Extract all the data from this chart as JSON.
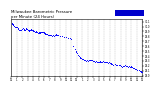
{
  "title": "Milwaukee Barometric Pressure\nper Minute (24 Hours)",
  "title_fontsize": 2.8,
  "bg_color": "#ffffff",
  "dot_color": "#0000ff",
  "dot_size": 0.5,
  "legend_color": "#0000cc",
  "ylim": [
    29.0,
    30.15
  ],
  "xlim": [
    0,
    1440
  ],
  "ytick_labels": [
    "30.1",
    "30.0",
    "29.9",
    "29.8",
    "29.7",
    "29.6",
    "29.5",
    "29.4",
    "29.3",
    "29.2",
    "29.1",
    "29.0"
  ],
  "ytick_values": [
    30.1,
    30.0,
    29.9,
    29.8,
    29.7,
    29.6,
    29.5,
    29.4,
    29.3,
    29.2,
    29.1,
    29.0
  ],
  "xtick_values": [
    0,
    60,
    120,
    180,
    240,
    300,
    360,
    420,
    480,
    540,
    600,
    660,
    720,
    780,
    840,
    900,
    960,
    1020,
    1080,
    1140,
    1200,
    1260,
    1320,
    1380,
    1440
  ],
  "xtick_labels": [
    "12",
    "1",
    "2",
    "3",
    "4",
    "5",
    "6",
    "7",
    "8",
    "9",
    "10",
    "11",
    "12",
    "1",
    "2",
    "3",
    "4",
    "5",
    "6",
    "7",
    "8",
    "9",
    "10",
    "11",
    "12"
  ],
  "data": [
    [
      5,
      30.08
    ],
    [
      10,
      30.06
    ],
    [
      15,
      30.05
    ],
    [
      20,
      30.04
    ],
    [
      25,
      30.03
    ],
    [
      30,
      30.02
    ],
    [
      35,
      30.01
    ],
    [
      40,
      30.0
    ],
    [
      50,
      29.99
    ],
    [
      60,
      29.98
    ],
    [
      70,
      29.96
    ],
    [
      80,
      29.95
    ],
    [
      90,
      29.93
    ],
    [
      100,
      29.92
    ],
    [
      110,
      29.93
    ],
    [
      120,
      29.95
    ],
    [
      130,
      29.96
    ],
    [
      135,
      29.94
    ],
    [
      140,
      29.95
    ],
    [
      145,
      29.93
    ],
    [
      150,
      29.92
    ],
    [
      155,
      29.93
    ],
    [
      160,
      29.95
    ],
    [
      165,
      29.96
    ],
    [
      170,
      29.95
    ],
    [
      175,
      29.94
    ],
    [
      180,
      29.93
    ],
    [
      190,
      29.92
    ],
    [
      195,
      29.91
    ],
    [
      200,
      29.9
    ],
    [
      210,
      29.92
    ],
    [
      215,
      29.93
    ],
    [
      220,
      29.94
    ],
    [
      230,
      29.93
    ],
    [
      235,
      29.92
    ],
    [
      240,
      29.91
    ],
    [
      250,
      29.9
    ],
    [
      260,
      29.88
    ],
    [
      270,
      29.9
    ],
    [
      275,
      29.89
    ],
    [
      280,
      29.88
    ],
    [
      290,
      29.87
    ],
    [
      300,
      29.88
    ],
    [
      310,
      29.87
    ],
    [
      315,
      29.88
    ],
    [
      320,
      29.87
    ],
    [
      330,
      29.88
    ],
    [
      335,
      29.89
    ],
    [
      340,
      29.88
    ],
    [
      350,
      29.89
    ],
    [
      355,
      29.88
    ],
    [
      360,
      29.87
    ],
    [
      370,
      29.86
    ],
    [
      375,
      29.85
    ],
    [
      380,
      29.84
    ],
    [
      390,
      29.85
    ],
    [
      395,
      29.84
    ],
    [
      400,
      29.83
    ],
    [
      410,
      29.82
    ],
    [
      420,
      29.83
    ],
    [
      425,
      29.82
    ],
    [
      430,
      29.83
    ],
    [
      440,
      29.82
    ],
    [
      450,
      29.81
    ],
    [
      460,
      29.82
    ],
    [
      470,
      29.81
    ],
    [
      480,
      29.82
    ],
    [
      490,
      29.83
    ],
    [
      495,
      29.84
    ],
    [
      500,
      29.83
    ],
    [
      510,
      29.82
    ],
    [
      540,
      29.81
    ],
    [
      560,
      29.8
    ],
    [
      580,
      29.79
    ],
    [
      600,
      29.78
    ],
    [
      620,
      29.77
    ],
    [
      640,
      29.76
    ],
    [
      660,
      29.75
    ],
    [
      680,
      29.6
    ],
    [
      700,
      29.55
    ],
    [
      710,
      29.5
    ],
    [
      715,
      29.48
    ],
    [
      720,
      29.46
    ],
    [
      730,
      29.43
    ],
    [
      740,
      29.4
    ],
    [
      750,
      29.38
    ],
    [
      760,
      29.36
    ],
    [
      770,
      29.35
    ],
    [
      780,
      29.34
    ],
    [
      790,
      29.33
    ],
    [
      800,
      29.32
    ],
    [
      810,
      29.31
    ],
    [
      820,
      29.3
    ],
    [
      830,
      29.31
    ],
    [
      840,
      29.3
    ],
    [
      850,
      29.31
    ],
    [
      860,
      29.32
    ],
    [
      870,
      29.31
    ],
    [
      880,
      29.32
    ],
    [
      890,
      29.31
    ],
    [
      900,
      29.3
    ],
    [
      910,
      29.29
    ],
    [
      920,
      29.28
    ],
    [
      930,
      29.29
    ],
    [
      940,
      29.28
    ],
    [
      950,
      29.27
    ],
    [
      960,
      29.28
    ],
    [
      970,
      29.29
    ],
    [
      980,
      29.28
    ],
    [
      990,
      29.27
    ],
    [
      1000,
      29.28
    ],
    [
      1010,
      29.29
    ],
    [
      1020,
      29.28
    ],
    [
      1030,
      29.27
    ],
    [
      1040,
      29.28
    ],
    [
      1050,
      29.27
    ],
    [
      1060,
      29.26
    ],
    [
      1070,
      29.27
    ],
    [
      1080,
      29.26
    ],
    [
      1090,
      29.25
    ],
    [
      1100,
      29.24
    ],
    [
      1110,
      29.23
    ],
    [
      1120,
      29.22
    ],
    [
      1140,
      29.23
    ],
    [
      1150,
      29.22
    ],
    [
      1160,
      29.21
    ],
    [
      1180,
      29.22
    ],
    [
      1190,
      29.21
    ],
    [
      1200,
      29.2
    ],
    [
      1210,
      29.19
    ],
    [
      1220,
      29.18
    ],
    [
      1230,
      29.19
    ],
    [
      1240,
      29.2
    ],
    [
      1250,
      29.21
    ],
    [
      1260,
      29.2
    ],
    [
      1270,
      29.19
    ],
    [
      1280,
      29.18
    ],
    [
      1290,
      29.19
    ],
    [
      1300,
      29.18
    ],
    [
      1310,
      29.19
    ],
    [
      1320,
      29.18
    ],
    [
      1330,
      29.17
    ],
    [
      1340,
      29.16
    ],
    [
      1350,
      29.15
    ],
    [
      1360,
      29.14
    ],
    [
      1370,
      29.13
    ],
    [
      1380,
      29.12
    ],
    [
      1400,
      29.11
    ],
    [
      1410,
      29.1
    ],
    [
      1420,
      29.09
    ],
    [
      1430,
      29.08
    ],
    [
      1440,
      29.07
    ]
  ]
}
